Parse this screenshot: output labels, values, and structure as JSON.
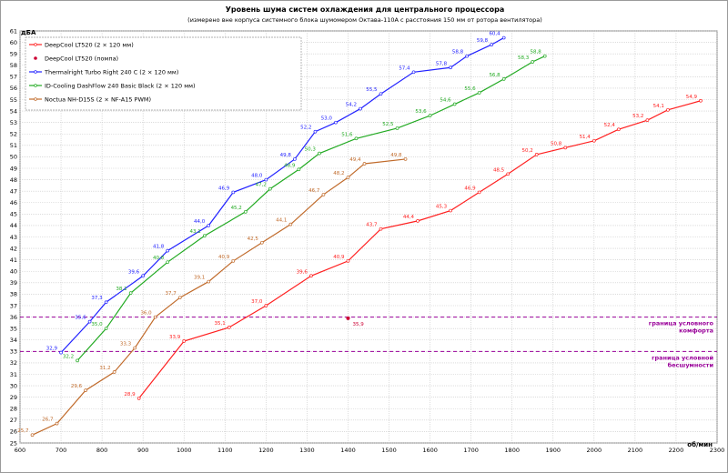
{
  "chart_data": {
    "type": "line",
    "title": "Уровень шума систем охлаждения для центрального процессора",
    "subtitle": "(измерено вне корпуса системного блока шумомером Октава-110А с расстояния 150 мм от ротора вентилятора)",
    "ylabel": "дБА",
    "xlabel": "об/мин",
    "xlim": [
      600,
      2300
    ],
    "ylim": [
      25,
      61
    ],
    "x_ticks": [
      600,
      700,
      800,
      900,
      1000,
      1100,
      1200,
      1300,
      1400,
      1500,
      1600,
      1700,
      1800,
      1900,
      2000,
      2100,
      2200,
      2300
    ],
    "y_ticks": [
      25,
      26,
      27,
      28,
      29,
      30,
      31,
      32,
      33,
      34,
      35,
      36,
      37,
      38,
      39,
      40,
      41,
      42,
      43,
      44,
      45,
      46,
      47,
      48,
      49,
      50,
      51,
      52,
      53,
      54,
      55,
      56,
      57,
      58,
      59,
      60,
      61
    ],
    "grid": true,
    "legend_position": "top-left",
    "series": [
      {
        "name": "DeepCool LT520 (2 × 120 мм)",
        "color": "#ff2020",
        "marker": "circle-open",
        "x": [
          890,
          1000,
          1110,
          1200,
          1310,
          1400,
          1480,
          1570,
          1650,
          1720,
          1790,
          1860,
          1930,
          2000,
          2060,
          2130,
          2180,
          2260
        ],
        "y": [
          28.9,
          33.9,
          35.1,
          37.0,
          39.6,
          40.9,
          43.7,
          44.4,
          45.3,
          46.9,
          48.5,
          50.2,
          50.8,
          51.4,
          52.4,
          53.2,
          54.1,
          54.9
        ],
        "labels": [
          "28,9",
          "33,9",
          "35,1",
          "37,0",
          "39,6",
          "40,9",
          "43,7",
          "44,4",
          "45,3",
          "46,9",
          "48,5",
          "50,2",
          "50,8",
          "51,4",
          "52,4",
          "53,2",
          "54,1",
          "54,9"
        ]
      },
      {
        "name": "DeepCool LT520 (помпа)",
        "color": "#cc0033",
        "marker": "dot",
        "x": [
          1400
        ],
        "y": [
          35.9
        ],
        "labels": [
          "35,9"
        ]
      },
      {
        "name": "Thermalright Turbo Right 240 C (2 × 120 мм)",
        "color": "#2222ff",
        "marker": "circle-open",
        "x": [
          700,
          770,
          810,
          900,
          960,
          1060,
          1120,
          1200,
          1270,
          1320,
          1370,
          1430,
          1480,
          1560,
          1650,
          1690,
          1750,
          1780
        ],
        "y": [
          32.9,
          35.6,
          37.3,
          39.6,
          41.8,
          44.0,
          46.9,
          48.0,
          49.8,
          52.2,
          53.0,
          54.2,
          55.5,
          57.4,
          57.8,
          58.8,
          59.8,
          60.4
        ],
        "labels": [
          "32,9",
          "35,6",
          "37,3",
          "39,6",
          "41,8",
          "44,0",
          "46,9",
          "48,0",
          "49,8",
          "52,2",
          "53,0",
          "54,2",
          "55,5",
          "57,4",
          "57,8",
          "58,8",
          "59,8",
          "60,4"
        ]
      },
      {
        "name": "ID-Cooling DashFlow 240 Basic Black (2 × 120 мм)",
        "color": "#22aa22",
        "marker": "circle-open",
        "x": [
          740,
          810,
          870,
          960,
          1050,
          1150,
          1210,
          1280,
          1330,
          1420,
          1520,
          1600,
          1660,
          1720,
          1780,
          1850,
          1880
        ],
        "y": [
          32.2,
          35.0,
          38.1,
          40.8,
          43.1,
          45.2,
          47.2,
          48.9,
          50.3,
          51.6,
          52.5,
          53.6,
          54.6,
          55.6,
          56.8,
          58.3,
          58.8
        ],
        "labels": [
          "32,2",
          "35,0",
          "38,1",
          "40,8",
          "43,1",
          "45,2",
          "47,2",
          "48,9",
          "50,3",
          "51,6",
          "52,5",
          "53,6",
          "54,6",
          "55,6",
          "56,8",
          "58,3",
          "58,8"
        ]
      },
      {
        "name": "Noctua NH-D15S (2 × NF-A15 PWM)",
        "color": "#c06a2a",
        "marker": "circle-open",
        "x": [
          630,
          690,
          760,
          830,
          880,
          930,
          990,
          1060,
          1120,
          1190,
          1260,
          1340,
          1400,
          1440,
          1540
        ],
        "y": [
          25.7,
          26.7,
          29.6,
          31.2,
          33.3,
          36.0,
          37.7,
          39.1,
          40.9,
          42.5,
          44.1,
          46.7,
          48.2,
          49.4,
          49.8
        ],
        "labels": [
          "25,7",
          "26,7",
          "29,6",
          "31,2",
          "33,3",
          "36,0",
          "37,7",
          "39,1",
          "40,9",
          "42,5",
          "44,1",
          "46,7",
          "48,2",
          "49,4",
          "49,8"
        ]
      }
    ],
    "reference_lines": [
      {
        "y": 36,
        "color": "#990099",
        "label_lines": [
          "граница условного",
          "комфорта"
        ]
      },
      {
        "y": 33,
        "color": "#990099",
        "label_lines": [
          "граница условной",
          "бесшумности"
        ]
      }
    ]
  }
}
